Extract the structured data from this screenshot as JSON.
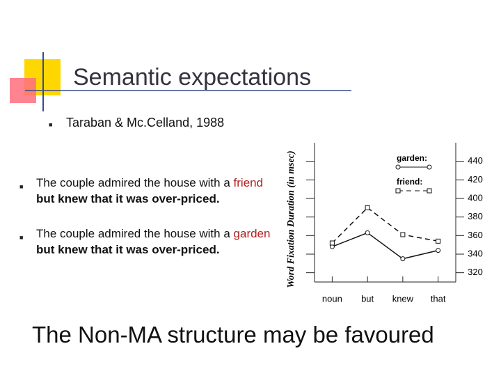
{
  "header": {
    "title": "Semantic expectations",
    "subtitle": "Taraban & Mc.Celland, 1988"
  },
  "bullets": [
    {
      "lead": "The couple admired the house with a",
      "key": "friend",
      "rest": "but knew that it was over-priced."
    },
    {
      "lead": "The couple admired the house with a",
      "key": "garden",
      "rest": "but knew that it was over-priced."
    }
  ],
  "chart_data": {
    "type": "line",
    "ylabel": "Word Fixation Duration (in msec)",
    "categories": [
      "noun",
      "but",
      "knew",
      "that"
    ],
    "series": [
      {
        "name": "garden:",
        "color": "#111111",
        "values": [
          348,
          363,
          335,
          344
        ]
      },
      {
        "name": "friend:",
        "color": "#111111",
        "values": [
          352,
          390,
          361,
          354
        ]
      }
    ],
    "ylim": [
      310,
      460
    ],
    "yticks": [
      320,
      340,
      360,
      380,
      400,
      420,
      440
    ]
  },
  "footer": "The Non-MA structure may be favoured"
}
